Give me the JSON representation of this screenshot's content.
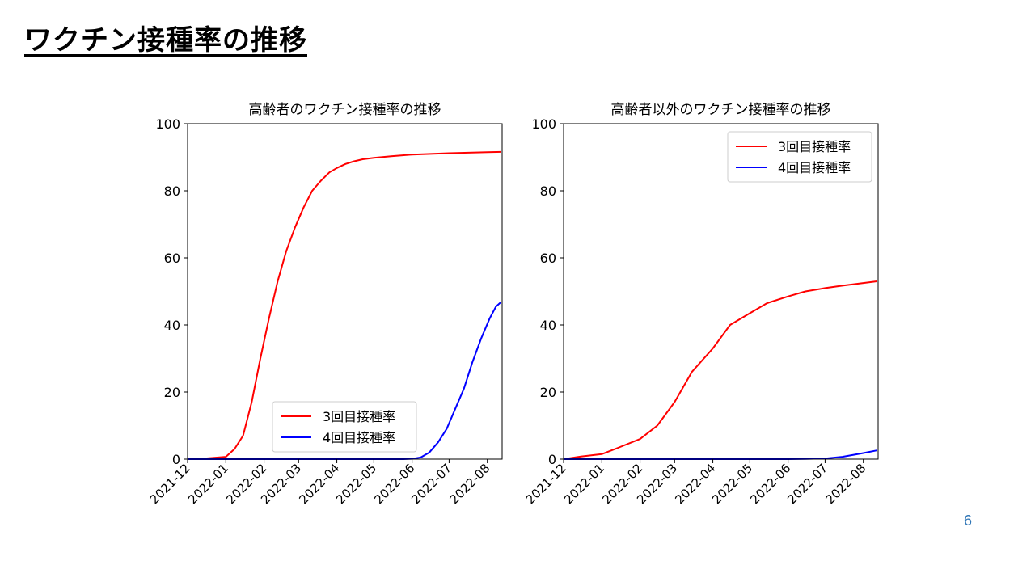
{
  "slide": {
    "title": "ワクチン接種率の推移",
    "page_number": "6"
  },
  "colors": {
    "dose3": "#ff0000",
    "dose4": "#0000ff",
    "page_number": "#2e75b6"
  },
  "chart_data": [
    {
      "type": "line",
      "title": "高齢者のワクチン接種率の推移",
      "xlabel": "",
      "ylabel": "",
      "ylim": [
        0,
        100
      ],
      "yticks": [
        0,
        20,
        40,
        60,
        80,
        100
      ],
      "xticks": [
        "2021-12",
        "2022-01",
        "2022-02",
        "2022-03",
        "2022-04",
        "2022-05",
        "2022-06",
        "2022-07",
        "2022-08"
      ],
      "xlim": [
        "2021-12-01",
        "2022-08-13"
      ],
      "grid": false,
      "legend_position": "lower-right",
      "series": [
        {
          "name": "3回目接種率",
          "color": "#ff0000",
          "x": [
            "2021-12-01",
            "2021-12-15",
            "2022-01-01",
            "2022-01-08",
            "2022-01-15",
            "2022-01-22",
            "2022-01-29",
            "2022-02-05",
            "2022-02-12",
            "2022-02-19",
            "2022-02-26",
            "2022-03-05",
            "2022-03-12",
            "2022-03-19",
            "2022-03-26",
            "2022-04-01",
            "2022-04-08",
            "2022-04-15",
            "2022-04-22",
            "2022-05-01",
            "2022-05-15",
            "2022-06-01",
            "2022-07-01",
            "2022-08-01",
            "2022-08-12"
          ],
          "y": [
            0,
            0.2,
            0.7,
            3,
            7,
            17,
            30,
            42,
            53,
            62,
            69,
            75,
            80,
            83,
            85.5,
            86.8,
            88,
            88.8,
            89.4,
            89.8,
            90.3,
            90.8,
            91.2,
            91.5,
            91.6
          ]
        },
        {
          "name": "4回目接種率",
          "color": "#0000ff",
          "x": [
            "2021-12-01",
            "2022-05-25",
            "2022-06-01",
            "2022-06-08",
            "2022-06-15",
            "2022-06-22",
            "2022-06-29",
            "2022-07-06",
            "2022-07-13",
            "2022-07-20",
            "2022-07-27",
            "2022-08-03",
            "2022-08-08",
            "2022-08-12"
          ],
          "y": [
            0,
            0,
            0.1,
            0.5,
            2,
            5,
            9,
            15,
            21,
            29,
            36,
            42,
            45.5,
            46.8
          ]
        }
      ]
    },
    {
      "type": "line",
      "title": "高齢者以外のワクチン接種率の推移",
      "xlabel": "",
      "ylabel": "",
      "ylim": [
        0,
        100
      ],
      "yticks": [
        0,
        20,
        40,
        60,
        80,
        100
      ],
      "xticks": [
        "2021-12",
        "2022-01",
        "2022-02",
        "2022-03",
        "2022-04",
        "2022-05",
        "2022-06",
        "2022-07",
        "2022-08"
      ],
      "xlim": [
        "2021-12-01",
        "2022-08-13"
      ],
      "grid": false,
      "legend_position": "upper-right",
      "series": [
        {
          "name": "3回目接種率",
          "color": "#ff0000",
          "x": [
            "2021-12-01",
            "2021-12-15",
            "2022-01-01",
            "2022-01-15",
            "2022-02-01",
            "2022-02-15",
            "2022-03-01",
            "2022-03-15",
            "2022-04-01",
            "2022-04-15",
            "2022-05-01",
            "2022-05-15",
            "2022-06-01",
            "2022-06-15",
            "2022-07-01",
            "2022-07-15",
            "2022-08-01",
            "2022-08-12"
          ],
          "y": [
            0,
            0.8,
            1.5,
            3.5,
            6,
            10,
            17,
            26,
            33,
            40,
            43.5,
            46.5,
            48.5,
            50,
            51,
            51.7,
            52.5,
            53
          ]
        },
        {
          "name": "4回目接種率",
          "color": "#0000ff",
          "x": [
            "2021-12-01",
            "2022-06-01",
            "2022-06-15",
            "2022-07-01",
            "2022-07-15",
            "2022-08-01",
            "2022-08-12"
          ],
          "y": [
            0,
            0,
            0.05,
            0.2,
            0.7,
            1.8,
            2.6
          ]
        }
      ]
    }
  ]
}
